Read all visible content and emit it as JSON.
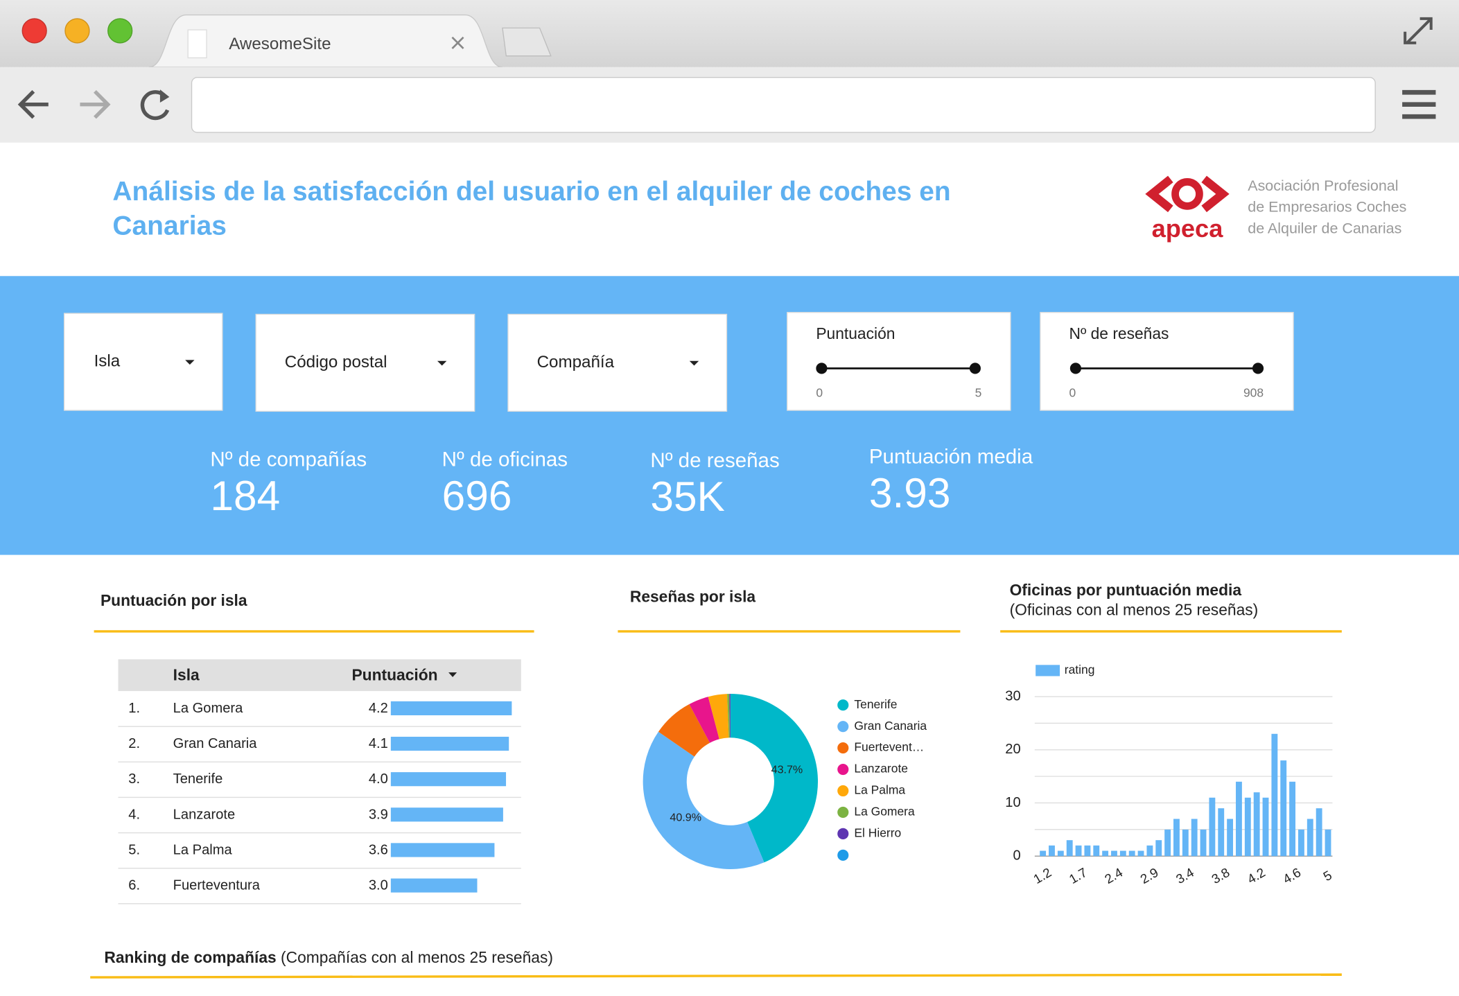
{
  "browser": {
    "tab_title": "AwesomeSite"
  },
  "header": {
    "title": [
      "Análisis de la satisfacción del usuario en el alquiler de coches en",
      "Canarias"
    ],
    "logo": {
      "name": "apeca",
      "caption": [
        "Asociación Profesional",
        "de Empresarios Coches",
        "de Alquiler de Canarias"
      ]
    }
  },
  "filters": [
    "Isla",
    "Código postal",
    "Compañía"
  ],
  "sliders": [
    {
      "label": "Puntuación",
      "min": 0,
      "max": 5
    },
    {
      "label": "Nº de reseñas",
      "min": 0,
      "max": 908
    }
  ],
  "kpis": [
    {
      "label": "Nº de compañías",
      "value": "184"
    },
    {
      "label": "Nº de oficinas",
      "value": "696"
    },
    {
      "label": "Nº de reseñas",
      "value": "35K"
    },
    {
      "label": "Puntuación media",
      "value": "3.93"
    }
  ],
  "chart_data": [
    {
      "type": "table",
      "title": "Puntuación por isla",
      "columns": [
        "Isla",
        "Puntuación"
      ],
      "ranks": [
        "1.",
        "2.",
        "3.",
        "4.",
        "5.",
        "6."
      ],
      "categories": [
        "La Gomera",
        "Gran Canaria",
        "Tenerife",
        "Lanzarote",
        "La Palma",
        "Fuerteventura"
      ],
      "values": [
        4.2,
        4.1,
        4.0,
        3.9,
        3.6,
        3.0
      ],
      "value_labels": [
        "4.2",
        "4.1",
        "4.0",
        "3.9",
        "3.6",
        "3.0"
      ],
      "color": "#64b5f6"
    },
    {
      "type": "pie",
      "title": "Reseñas por isla",
      "categories": [
        "Tenerife",
        "Gran Canaria",
        "Fuertevent…",
        "Lanzarote",
        "La Palma",
        "La Gomera",
        "El Hierro",
        null
      ],
      "values": [
        43.7,
        40.9,
        7.6,
        3.7,
        3.5,
        0.4,
        0.2,
        0
      ],
      "value_labels": [
        "43.7%",
        "40.9%",
        null,
        null,
        null,
        null,
        null,
        null
      ],
      "colors": [
        "#00b8c9",
        "#64b5f6",
        "#f46d0c",
        "#e8158c",
        "#ffa80a",
        "#7cb342",
        "#5e35b1",
        "#1e9be8"
      ]
    },
    {
      "type": "bar",
      "title": "Oficinas por puntuación media",
      "subtitle": "(Oficinas con al menos 25 reseñas)",
      "series": [
        {
          "name": "rating",
          "color": "#64b5f6",
          "values": [
            1,
            2,
            1,
            3,
            2,
            2,
            2,
            1,
            1,
            1,
            1,
            1,
            2,
            3,
            5,
            7,
            5,
            7,
            5,
            11,
            9,
            7,
            14,
            11,
            12,
            11,
            23,
            18,
            14,
            5,
            7,
            9,
            5
          ]
        }
      ],
      "categories": [
        "1.2",
        null,
        null,
        null,
        "1.7",
        null,
        null,
        null,
        "2.4",
        null,
        null,
        null,
        "2.9",
        null,
        null,
        null,
        "3.4",
        null,
        null,
        null,
        "3.8",
        null,
        null,
        null,
        "4.2",
        null,
        null,
        null,
        "4.6",
        null,
        null,
        null,
        "5"
      ],
      "ylim": [
        0,
        30
      ],
      "yticks": [
        0,
        10,
        20,
        30
      ],
      "yminorticks": [
        5,
        15,
        25
      ],
      "grid": true
    }
  ],
  "footer_section": {
    "title": "Ranking de compañías",
    "subtitle": " (Compañías con al menos 25 reseñas)"
  }
}
